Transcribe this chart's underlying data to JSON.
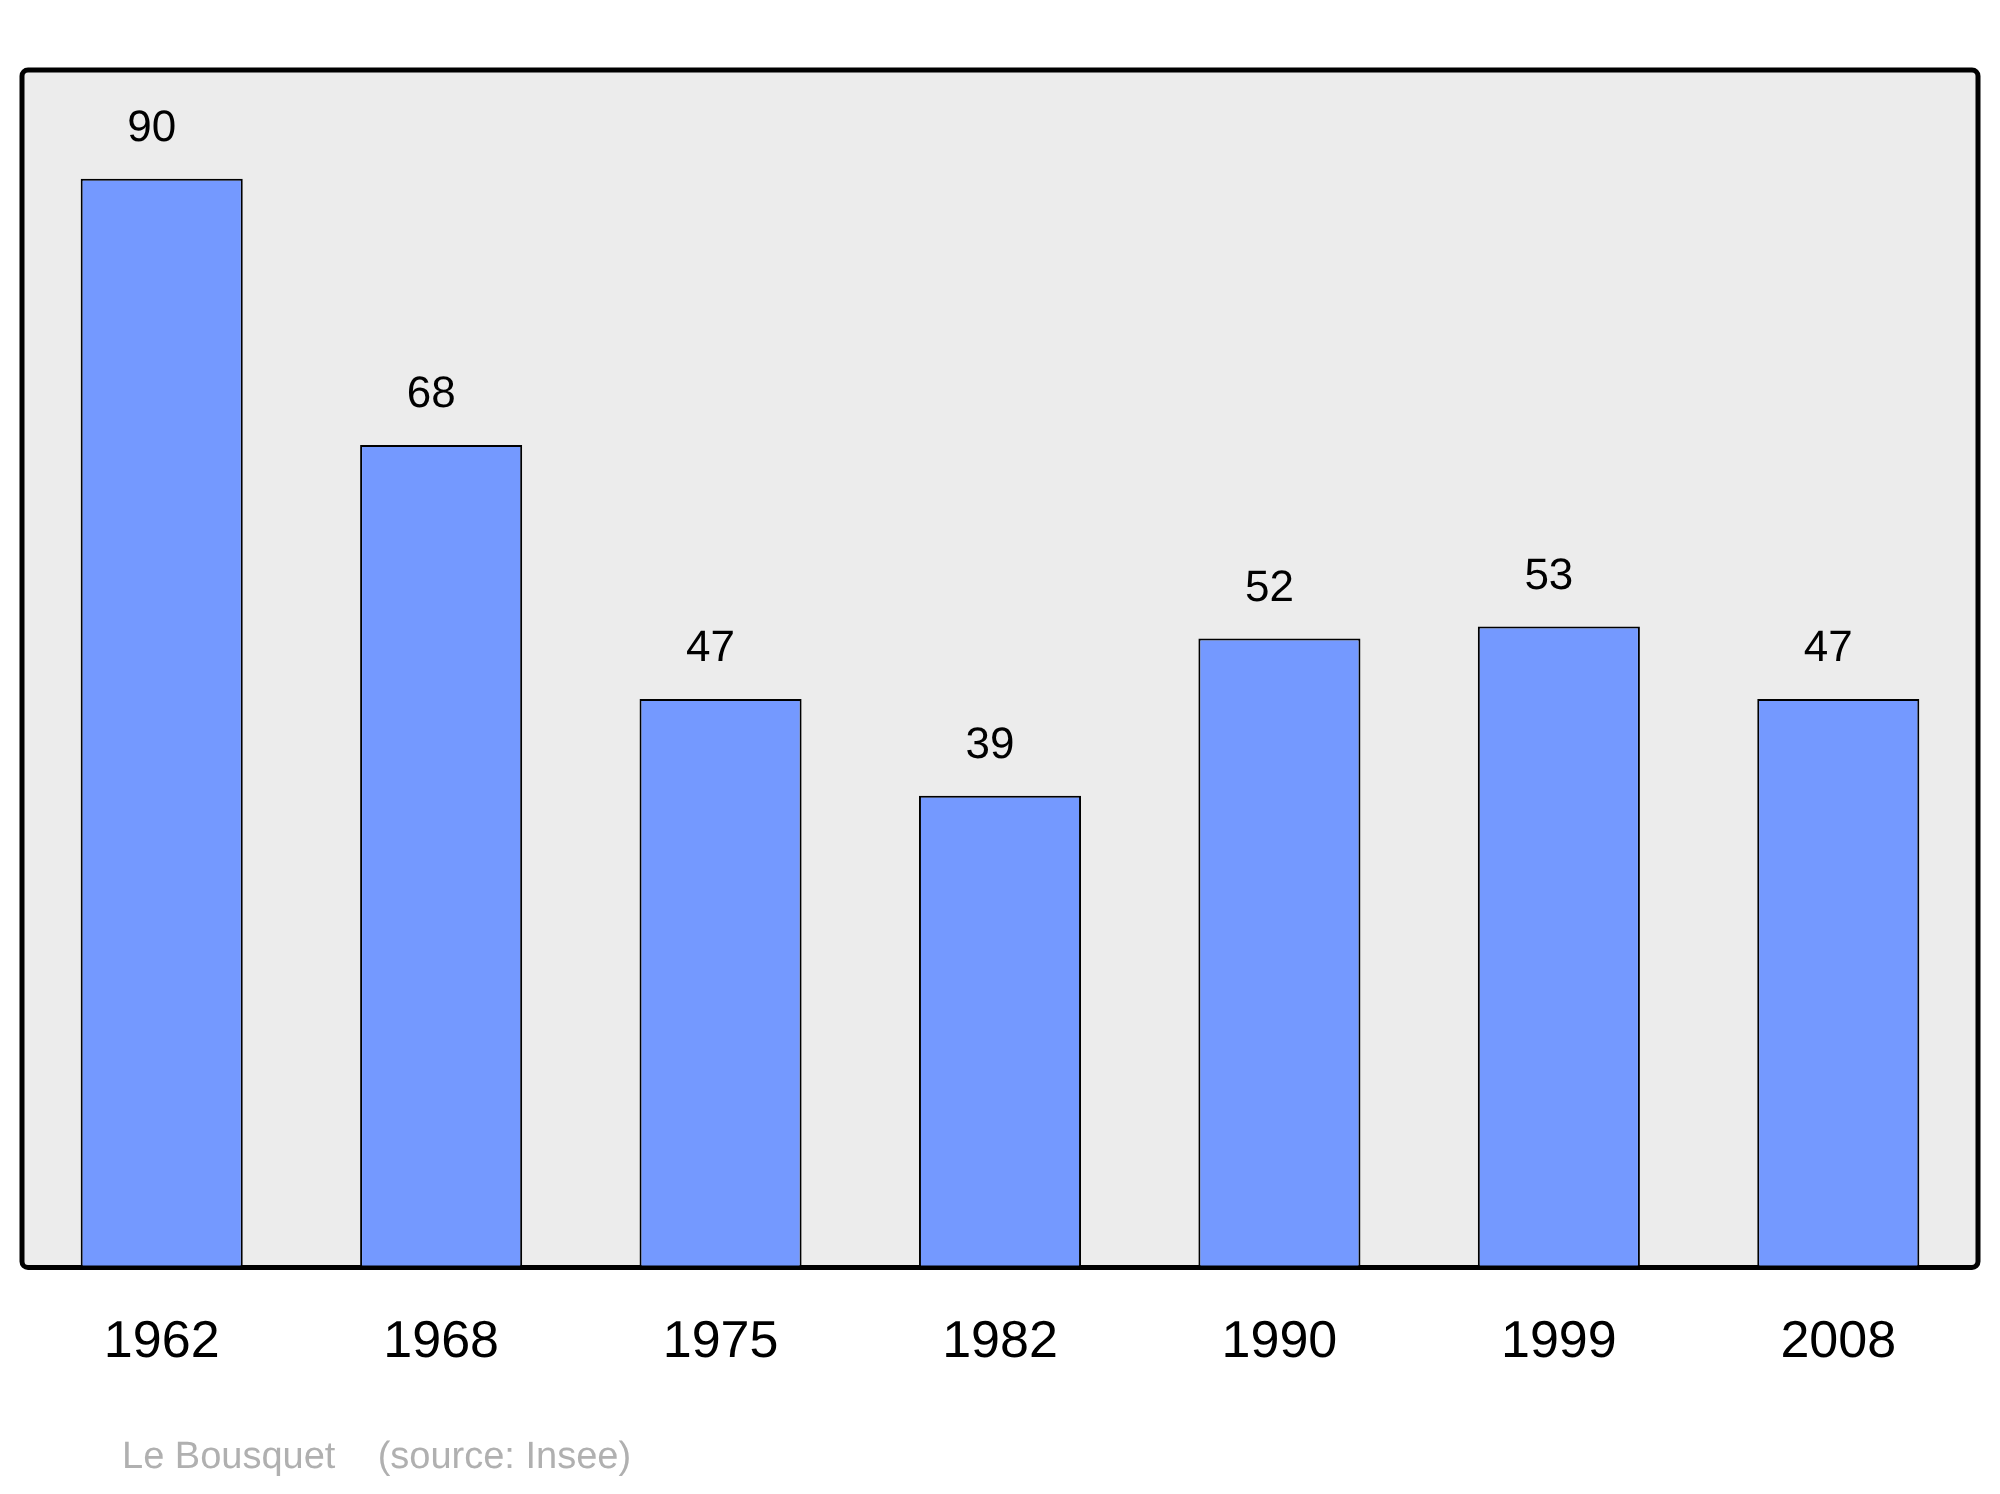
{
  "chart_data": {
    "type": "bar",
    "categories": [
      "1962",
      "1968",
      "1975",
      "1982",
      "1990",
      "1999",
      "2008"
    ],
    "values": [
      90,
      68,
      47,
      39,
      52,
      53,
      47
    ],
    "color": "#7499ff",
    "data_labels": true,
    "grid": false,
    "legend": false,
    "annotations": [
      "Le Bousquet    (source: Insee)"
    ]
  }
}
